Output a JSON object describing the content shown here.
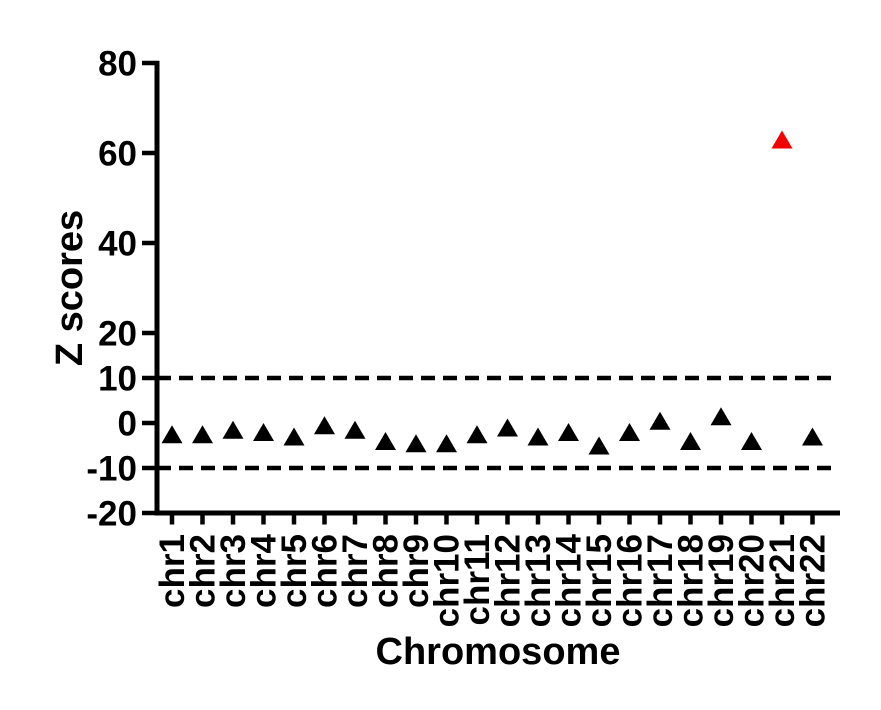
{
  "chart_data": {
    "type": "scatter",
    "marker": "triangle-up",
    "title": "",
    "xlabel": "Chromosome",
    "ylabel": "Z scores",
    "categories": [
      "chr1",
      "chr2",
      "chr3",
      "chr4",
      "chr5",
      "chr6",
      "chr7",
      "chr8",
      "chr9",
      "chr10",
      "chr11",
      "chr12",
      "chr13",
      "chr14",
      "chr15",
      "chr16",
      "chr17",
      "chr18",
      "chr19",
      "chr20",
      "chr21",
      "chr22"
    ],
    "values": [
      -2.5,
      -2.5,
      -1.5,
      -2,
      -3,
      -0.5,
      -1.5,
      -4,
      -4.5,
      -4.5,
      -2.5,
      -1,
      -3,
      -2,
      -5,
      -2,
      0.5,
      -4,
      1.5,
      -4,
      63,
      -3
    ],
    "highlight_category": "chr21",
    "highlight_index": 20,
    "ylim": [
      -20,
      80
    ],
    "yticks": [
      -20,
      -10,
      0,
      10,
      20,
      40,
      60,
      80
    ],
    "ytick_labels": [
      "-20",
      "-10",
      "0",
      "10",
      "20",
      "40",
      "60",
      "80"
    ],
    "threshold_lines": [
      {
        "y": 10,
        "style": "dashed"
      },
      {
        "y": -10,
        "style": "dashed"
      }
    ],
    "grid": false,
    "legend": null,
    "colors": {
      "point_default": "#000000",
      "point_highlight": "#f40000",
      "axis": "#000000",
      "threshold_line": "#000000",
      "background": "#ffffff",
      "figure_border": "#000000"
    }
  }
}
